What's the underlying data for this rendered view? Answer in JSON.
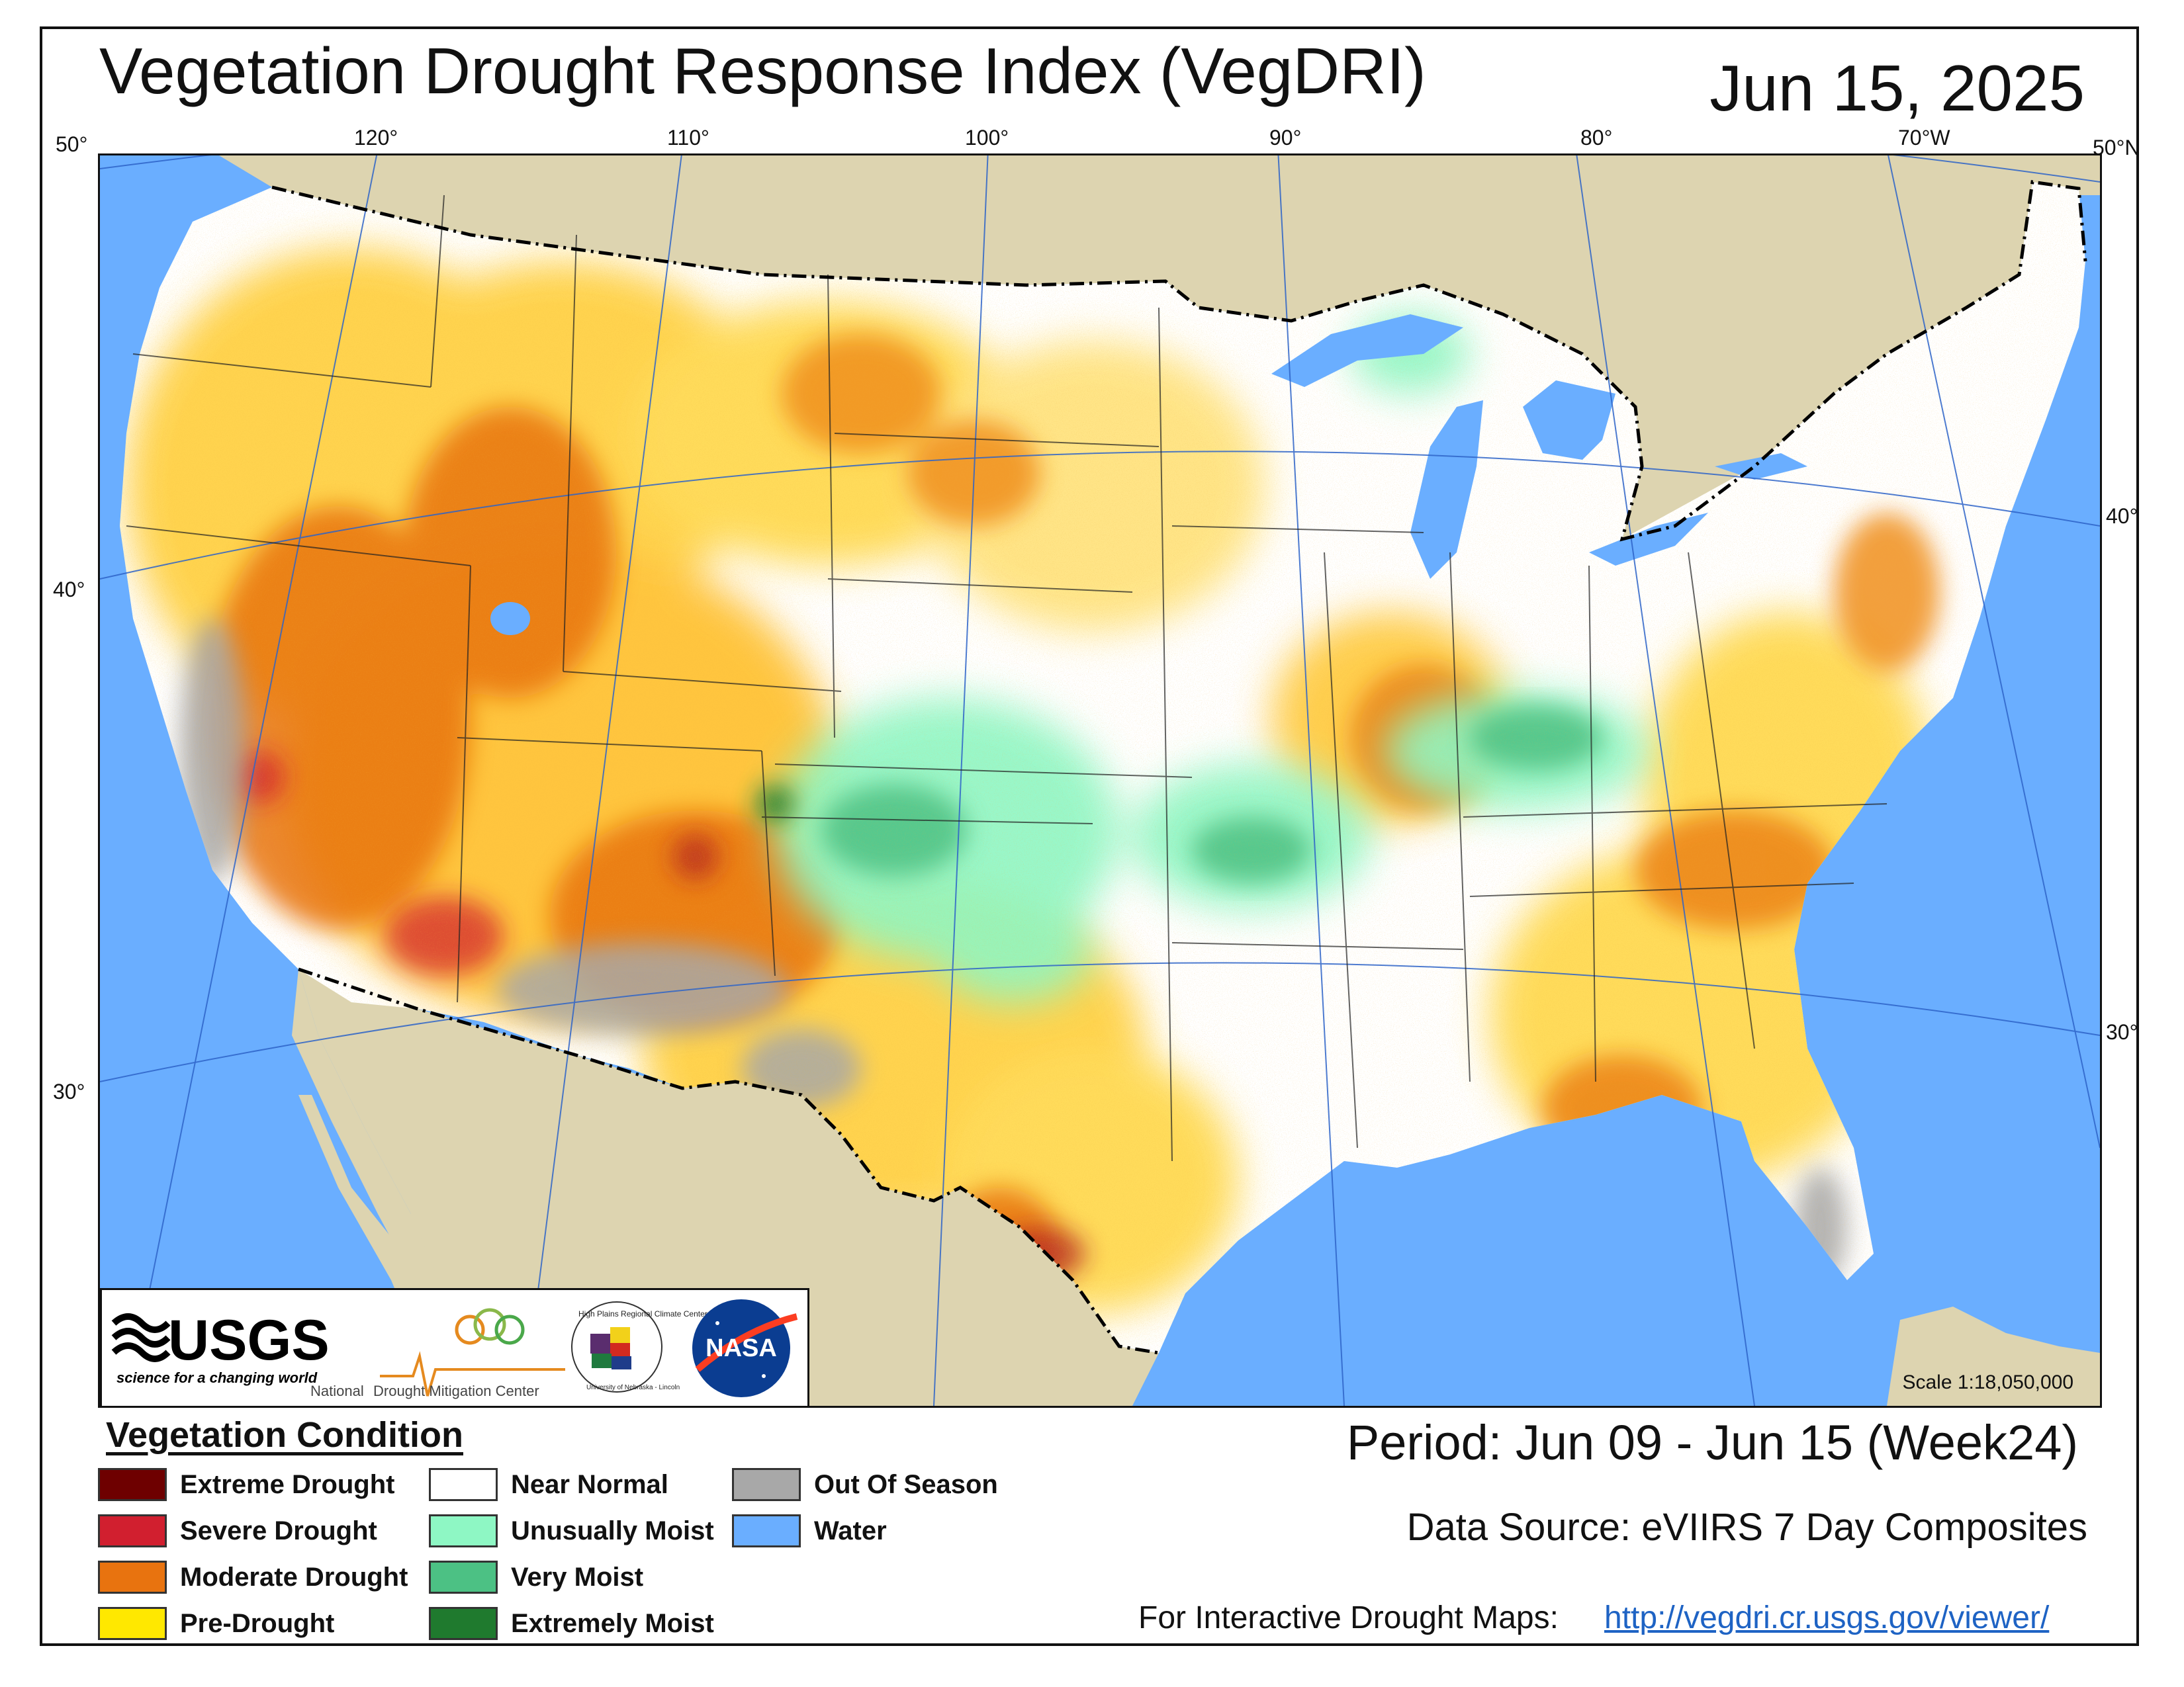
{
  "title": "Vegetation Drought Response Index (VegDRI)",
  "date": "Jun 15, 2025",
  "graticule": {
    "top_labels": [
      "50°",
      "120°",
      "110°",
      "100°",
      "90°",
      "80°",
      "70°W",
      "50°N"
    ],
    "left_labels": [
      "40°",
      "30°"
    ],
    "right_labels": [
      "40°",
      "30°"
    ]
  },
  "scale": "Scale 1:18,050,000",
  "logos": {
    "usgs_wordmark": "USGS",
    "usgs_tagline": "science for a changing world",
    "ndmc_text_1": "National",
    "ndmc_text_2": "Drought Mitigation Center",
    "hprcc_text": "High Plains Regional Climate Center",
    "hprcc_sub": "University of Nebraska - Lincoln",
    "nasa": "NASA"
  },
  "legend": {
    "title": "Vegetation Condition",
    "items": [
      {
        "label": "Extreme Drought",
        "color": "#6e0000"
      },
      {
        "label": "Severe Drought",
        "color": "#d11f2f"
      },
      {
        "label": "Moderate Drought",
        "color": "#e8730f"
      },
      {
        "label": "Pre-Drought",
        "color": "#ffe800"
      },
      {
        "label": "Near Normal",
        "color": "#ffffff"
      },
      {
        "label": "Unusually Moist",
        "color": "#8ef7c4"
      },
      {
        "label": "Very Moist",
        "color": "#4cc184"
      },
      {
        "label": "Extremely Moist",
        "color": "#1f7a2e"
      },
      {
        "label": "Out Of Season",
        "color": "#a8a8a8"
      },
      {
        "label": "Water",
        "color": "#6aaeff"
      }
    ]
  },
  "period": "Period:  Jun 09 - Jun 15 (Week24)",
  "data_source": "Data Source:  eVIIRS 7 Day Composites",
  "interactive_label": "For Interactive Drought Maps:",
  "interactive_url": "http://vegdri.cr.usgs.gov/viewer/",
  "colors": {
    "land_outside": "#ddd4b0",
    "border": "#111111"
  }
}
